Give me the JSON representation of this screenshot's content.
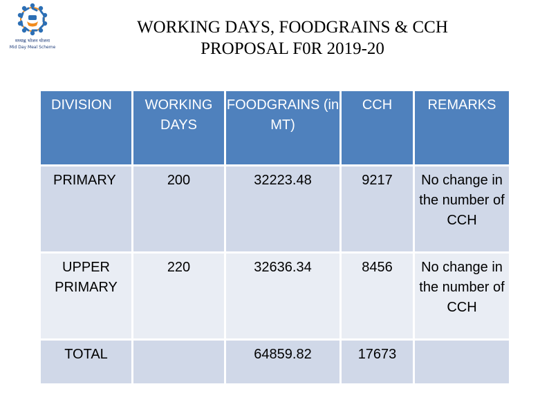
{
  "logo": {
    "icon": "mid-day-meal-scheme-logo",
    "text_line1": "मध्याह्न भोजन योजना",
    "text_line2": "Mid Day Meal Scheme",
    "colors": {
      "ring": "#2c6fb5",
      "accent": "#f28c1e"
    }
  },
  "title": {
    "line1": "WORKING DAYS, FOODGRAINS & CCH",
    "line2": "PROPOSAL F0R 2019-20"
  },
  "table": {
    "headers": {
      "division": "DIVISION",
      "working_days": "WORKING DAYS",
      "foodgrains": "FOODGRAINS (in MT)",
      "cch": "CCH",
      "remarks": "REMARKS"
    },
    "rows": [
      {
        "division": "PRIMARY",
        "working_days": "200",
        "foodgrains": "32223.48",
        "cch": "9217",
        "remarks": "No change in the number of CCH"
      },
      {
        "division": "UPPER PRIMARY",
        "working_days": "220",
        "foodgrains": "32636.34",
        "cch": "8456",
        "remarks": "No change in the number of CCH"
      },
      {
        "division": "TOTAL",
        "working_days": "",
        "foodgrains": "64859.82",
        "cch": "17673",
        "remarks": ""
      }
    ],
    "colors": {
      "header": "#4f81bd",
      "row_dark": "#d0d8e8",
      "row_light": "#e9edf4"
    }
  }
}
